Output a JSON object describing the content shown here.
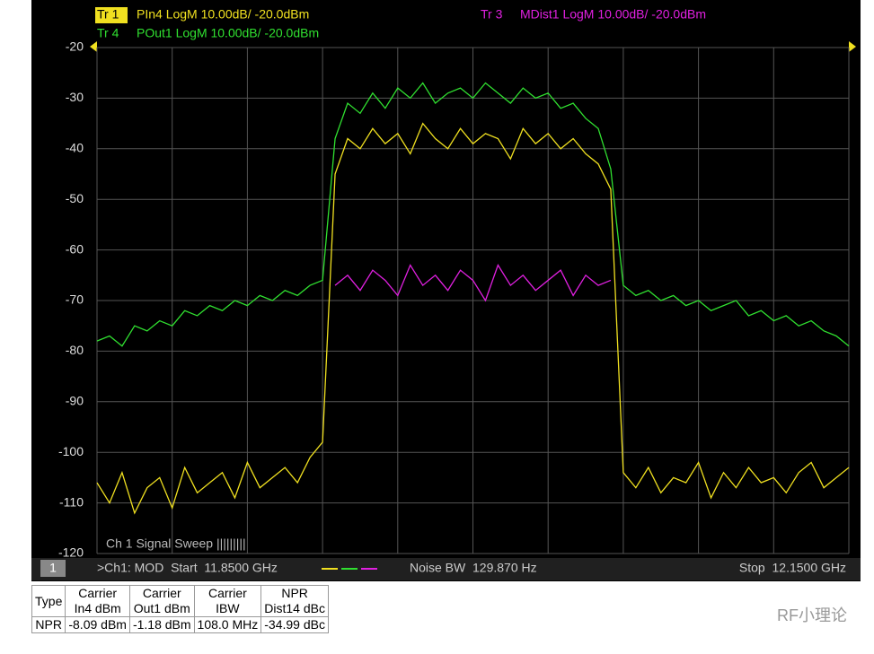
{
  "chart_data": {
    "type": "line",
    "x": [
      11.85,
      11.855,
      11.86,
      11.865,
      11.87,
      11.875,
      11.88,
      11.885,
      11.89,
      11.895,
      11.9,
      11.905,
      11.91,
      11.915,
      11.92,
      11.925,
      11.93,
      11.935,
      11.94,
      11.945,
      11.95,
      11.955,
      11.96,
      11.965,
      11.97,
      11.975,
      11.98,
      11.985,
      11.99,
      11.995,
      12.0,
      12.005,
      12.01,
      12.015,
      12.02,
      12.025,
      12.03,
      12.035,
      12.04,
      12.045,
      12.05,
      12.055,
      12.06,
      12.065,
      12.07,
      12.075,
      12.08,
      12.085,
      12.09,
      12.095,
      12.1,
      12.105,
      12.11,
      12.115,
      12.12,
      12.125,
      12.13,
      12.135,
      12.14,
      12.145,
      12.15
    ],
    "xlim": [
      11.85,
      12.15
    ],
    "xticks": [
      11.85,
      11.88,
      11.91,
      11.94,
      11.97,
      12.0,
      12.03,
      12.06,
      12.09,
      12.12,
      12.15
    ],
    "ylim": [
      -120,
      -20
    ],
    "yticks": [
      -20,
      -30,
      -40,
      -50,
      -60,
      -70,
      -80,
      -90,
      -100,
      -110,
      -120
    ],
    "grid": true,
    "series": [
      {
        "trace": "Tr 1",
        "name": "PIn4 LogM 10.00dB/ -20.0dBm",
        "color": "#f0e020",
        "values": [
          -106,
          -110,
          -104,
          -112,
          -107,
          -105,
          -111,
          -103,
          -108,
          -106,
          -104,
          -109,
          -102,
          -107,
          -105,
          -103,
          -106,
          -101,
          -98,
          -45,
          -38,
          -40,
          -36,
          -39,
          -37,
          -41,
          -35,
          -38,
          -40,
          -36,
          -39,
          -37,
          -38,
          -42,
          -36,
          -39,
          -37,
          -40,
          -38,
          -41,
          -43,
          -48,
          -104,
          -107,
          -103,
          -108,
          -105,
          -106,
          -102,
          -109,
          -104,
          -107,
          -103,
          -106,
          -105,
          -108,
          -104,
          -102,
          -107,
          -105,
          -103
        ]
      },
      {
        "trace": "Tr 4",
        "name": "POut1 LogM 10.00dB/ -20.0dBm",
        "color": "#30e030",
        "values": [
          -78,
          -77,
          -79,
          -75,
          -76,
          -74,
          -75,
          -72,
          -73,
          -71,
          -72,
          -70,
          -71,
          -69,
          -70,
          -68,
          -69,
          -67,
          -66,
          -38,
          -31,
          -33,
          -29,
          -32,
          -28,
          -30,
          -27,
          -31,
          -29,
          -28,
          -30,
          -27,
          -29,
          -31,
          -28,
          -30,
          -29,
          -32,
          -31,
          -34,
          -36,
          -44,
          -67,
          -69,
          -68,
          -70,
          -69,
          -71,
          -70,
          -72,
          -71,
          -70,
          -73,
          -72,
          -74,
          -73,
          -75,
          -74,
          -76,
          -77,
          -79
        ]
      },
      {
        "trace": "Tr 3",
        "name": "MDist1 LogM 10.00dB/ -20.0dBm",
        "color": "#e020e0",
        "values": [
          null,
          null,
          null,
          null,
          null,
          null,
          null,
          null,
          null,
          null,
          null,
          null,
          null,
          null,
          null,
          null,
          null,
          null,
          null,
          -67,
          -65,
          -68,
          -64,
          -66,
          -69,
          -63,
          -67,
          -65,
          -68,
          -64,
          -66,
          -70,
          -63,
          -67,
          -65,
          -68,
          -66,
          -64,
          -69,
          -65,
          -67,
          -66,
          null,
          null,
          null,
          null,
          null,
          null,
          null,
          null,
          null,
          null,
          null,
          null,
          null,
          null,
          null,
          null,
          null,
          null,
          null
        ]
      }
    ],
    "sweep_label": "Ch 1 Signal Sweep |||||||||",
    "status": {
      "channel": "1",
      "start": ">Ch1: MOD  Start  11.8500 GHz",
      "noise_bw": "Noise BW  129.870 Hz",
      "stop": "Stop  12.1500 GHz"
    }
  },
  "table": {
    "header": [
      [
        "Type"
      ],
      [
        "Carrier",
        "In4 dBm"
      ],
      [
        "Carrier",
        "Out1 dBm"
      ],
      [
        "Carrier",
        "IBW"
      ],
      [
        "NPR",
        "Dist14 dBc"
      ]
    ],
    "rows": [
      [
        "NPR",
        "-8.09 dBm",
        "-1.18 dBm",
        "108.0 MHz",
        "-34.99 dBc"
      ]
    ]
  },
  "watermark": "RF小理论"
}
